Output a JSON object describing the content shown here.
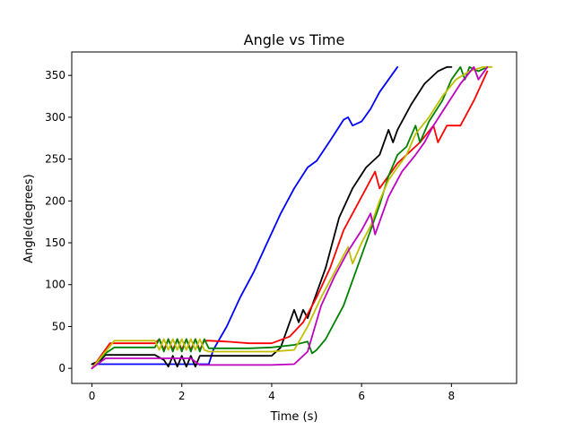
{
  "chart_data": {
    "type": "line",
    "title": "Angle vs Time",
    "xlabel": "Time (s)",
    "ylabel": "Angle(degrees)",
    "xlim": [
      -0.45,
      9.45
    ],
    "ylim": [
      -18,
      378
    ],
    "xticks": [
      0,
      2,
      4,
      6,
      8
    ],
    "yticks": [
      0,
      50,
      100,
      150,
      200,
      250,
      300,
      350
    ],
    "grid": false,
    "legend": "none",
    "series": [
      {
        "color": "#0000ff",
        "x": [
          0,
          0.3,
          2.6,
          2.7,
          3.0,
          3.3,
          3.6,
          3.9,
          4.2,
          4.5,
          4.8,
          5.0,
          5.3,
          5.6,
          5.7,
          5.8,
          6.0,
          6.2,
          6.4,
          6.6,
          6.8
        ],
        "y": [
          5,
          5,
          5,
          22,
          50,
          85,
          115,
          150,
          185,
          215,
          240,
          248,
          272,
          297,
          300,
          290,
          295,
          310,
          330,
          345,
          360
        ]
      },
      {
        "color": "#000000",
        "x": [
          0,
          0.2,
          0.3,
          1.4,
          1.6,
          1.7,
          1.8,
          1.9,
          2.0,
          2.1,
          2.2,
          2.3,
          2.4,
          2.6,
          4.0,
          4.2,
          4.5,
          4.6,
          4.7,
          4.8,
          4.9,
          5.2,
          5.5,
          5.8,
          6.1,
          6.4,
          6.6,
          6.7,
          6.8,
          7.1,
          7.4,
          7.7,
          7.9,
          8.0
        ],
        "y": [
          5,
          10,
          16,
          16,
          10,
          2,
          15,
          2,
          15,
          2,
          15,
          2,
          15,
          15,
          15,
          25,
          70,
          55,
          70,
          60,
          75,
          120,
          180,
          215,
          240,
          255,
          285,
          270,
          285,
          315,
          340,
          355,
          360,
          360
        ]
      },
      {
        "color": "#ff0000",
        "x": [
          0,
          0.4,
          1.4,
          1.5,
          1.6,
          1.7,
          1.8,
          1.9,
          2.0,
          2.1,
          2.2,
          2.3,
          2.4,
          2.5,
          2.6,
          3.0,
          3.5,
          4.0,
          4.4,
          4.7,
          5.0,
          5.3,
          5.6,
          6.0,
          6.3,
          6.4,
          6.6,
          6.8,
          7.0,
          7.3,
          7.6,
          7.7,
          7.9,
          8.2,
          8.5,
          8.8
        ],
        "y": [
          0,
          30,
          30,
          35,
          22,
          35,
          22,
          35,
          22,
          35,
          22,
          35,
          22,
          33,
          33,
          32,
          30,
          30,
          38,
          55,
          85,
          120,
          165,
          205,
          235,
          215,
          230,
          245,
          255,
          270,
          290,
          270,
          290,
          290,
          320,
          355
        ]
      },
      {
        "color": "#008000",
        "x": [
          0,
          0.3,
          0.5,
          1.4,
          1.5,
          1.6,
          1.7,
          1.8,
          1.9,
          2.0,
          2.1,
          2.2,
          2.3,
          2.4,
          2.5,
          2.6,
          3.0,
          3.5,
          4.0,
          4.5,
          4.8,
          4.9,
          5.0,
          5.2,
          5.4,
          5.6,
          5.8,
          6.0,
          6.2,
          6.4,
          6.6,
          6.8,
          7.0,
          7.2,
          7.3,
          7.5,
          7.8,
          8.0,
          8.2,
          8.3,
          8.4,
          8.6,
          8.8
        ],
        "y": [
          0,
          18,
          25,
          25,
          35,
          20,
          35,
          20,
          35,
          20,
          35,
          20,
          35,
          20,
          35,
          24,
          24,
          24,
          25,
          28,
          32,
          18,
          22,
          35,
          55,
          75,
          105,
          135,
          165,
          195,
          230,
          255,
          265,
          290,
          270,
          295,
          320,
          345,
          360,
          345,
          360,
          355,
          360
        ]
      },
      {
        "color": "#bfbf00",
        "x": [
          0,
          0.3,
          0.5,
          1.4,
          1.5,
          1.6,
          1.7,
          1.8,
          1.9,
          2.0,
          2.1,
          2.2,
          2.3,
          2.4,
          2.5,
          2.6,
          3.0,
          3.5,
          4.0,
          4.5,
          4.8,
          5.1,
          5.4,
          5.7,
          5.8,
          6.0,
          6.2,
          6.4,
          6.6,
          6.8,
          7.0,
          7.2,
          7.5,
          7.8,
          8.1,
          8.4,
          8.7,
          8.9
        ],
        "y": [
          0,
          20,
          33,
          33,
          22,
          35,
          22,
          35,
          22,
          35,
          22,
          35,
          22,
          35,
          22,
          20,
          20,
          20,
          20,
          22,
          50,
          85,
          115,
          145,
          125,
          150,
          170,
          200,
          225,
          240,
          255,
          280,
          300,
          325,
          345,
          355,
          360,
          360
        ]
      },
      {
        "color": "#bf00bf",
        "x": [
          0,
          0.2,
          0.3,
          2.2,
          2.3,
          2.4,
          2.5,
          2.6,
          3.0,
          3.5,
          4.0,
          4.5,
          4.8,
          5.1,
          5.4,
          5.7,
          6.0,
          6.2,
          6.3,
          6.6,
          6.9,
          7.2,
          7.4,
          7.6,
          7.9,
          8.2,
          8.5,
          8.6,
          8.8
        ],
        "y": [
          0,
          8,
          12,
          12,
          8,
          4,
          4,
          4,
          4,
          4,
          4,
          5,
          20,
          75,
          110,
          140,
          165,
          185,
          160,
          205,
          235,
          255,
          270,
          290,
          315,
          340,
          360,
          345,
          360
        ]
      }
    ]
  }
}
